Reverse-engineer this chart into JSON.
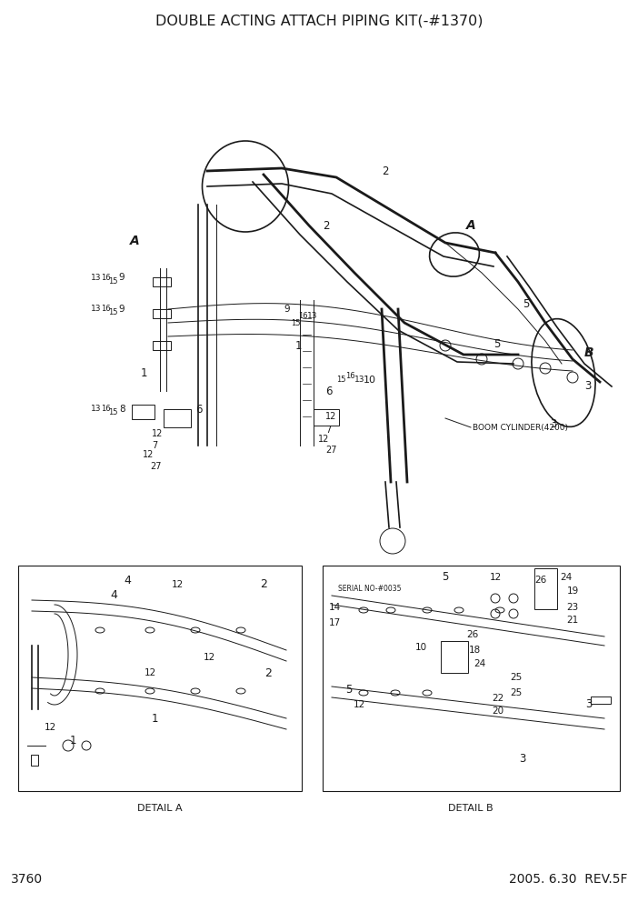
{
  "title": "DOUBLE ACTING ATTACH PIPING KIT(-#1370)",
  "page_number": "3760",
  "date_rev": "2005. 6.30  REV.5F",
  "bg_color": "#ffffff",
  "col": "#1a1a1a",
  "title_fontsize": 11.5,
  "footer_fontsize": 10,
  "fig_width": 7.02,
  "fig_height": 9.92
}
